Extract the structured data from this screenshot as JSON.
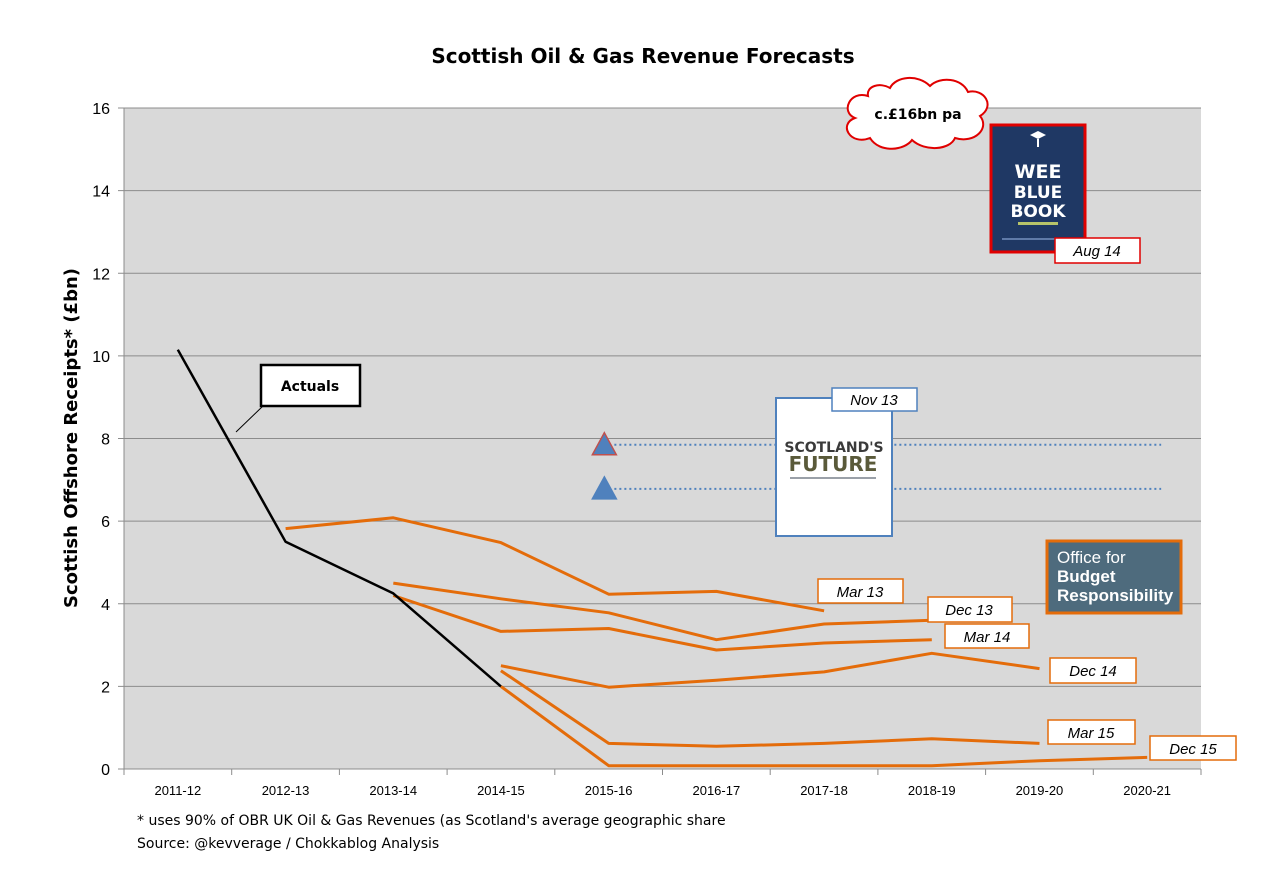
{
  "chart_data": {
    "type": "line",
    "title": "Scottish Oil & Gas Revenue Forecasts",
    "ylabel": "Scottish Offshore Receipts* (£bn)",
    "xlabel": "",
    "ylim": [
      0,
      16
    ],
    "yticks": [
      "0",
      "2",
      "4",
      "6",
      "8",
      "10",
      "12",
      "14",
      "16"
    ],
    "categories": [
      "2011-12",
      "2012-13",
      "2013-14",
      "2014-15",
      "2015-16",
      "2016-17",
      "2017-18",
      "2018-19",
      "2019-20",
      "2020-21"
    ],
    "grid": true,
    "plot_background": "#d9d9d9",
    "series": [
      {
        "name": "Actuals",
        "color": "#000000",
        "values": [
          10.15,
          5.5,
          4.25,
          2.0,
          null,
          null,
          null,
          null,
          null,
          null
        ]
      },
      {
        "name": "Mar 13",
        "color": "#e46c0a",
        "values": [
          null,
          5.82,
          6.08,
          5.48,
          4.23,
          4.3,
          3.83,
          null,
          null,
          null
        ]
      },
      {
        "name": "Dec 13",
        "color": "#e46c0a",
        "values": [
          null,
          null,
          4.5,
          4.12,
          3.78,
          3.13,
          3.51,
          3.6,
          null,
          null
        ]
      },
      {
        "name": "Mar 14",
        "color": "#e46c0a",
        "values": [
          null,
          null,
          4.2,
          3.33,
          3.4,
          2.88,
          3.05,
          3.13,
          null,
          null
        ]
      },
      {
        "name": "Dec 14",
        "color": "#e46c0a",
        "values": [
          null,
          null,
          null,
          2.5,
          1.98,
          2.15,
          2.35,
          2.8,
          2.43,
          null
        ]
      },
      {
        "name": "Mar 15",
        "color": "#e46c0a",
        "values": [
          null,
          null,
          null,
          2.38,
          0.62,
          0.55,
          0.62,
          0.73,
          0.62,
          null
        ]
      },
      {
        "name": "Dec 15",
        "color": "#e46c0a",
        "values": [
          null,
          null,
          null,
          2.0,
          0.08,
          0.08,
          0.08,
          0.08,
          0.2,
          0.28
        ]
      }
    ],
    "scotlands_future_estimates": {
      "values": [
        7.85,
        6.78
      ],
      "colors": [
        "#4f81bd",
        "#4f81bd"
      ],
      "marker": "triangle",
      "line_style": "dotted"
    },
    "callouts": {
      "actuals": "Actuals",
      "cloud": "c.£16bn pa",
      "aug14": "Aug 14",
      "nov13": "Nov 13",
      "mar13": "Mar 13",
      "dec13": "Dec 13",
      "mar14": "Mar 14",
      "dec14": "Dec 14",
      "mar15": "Mar 15",
      "dec15": "Dec 15"
    }
  },
  "images": {
    "wee_blue_book": {
      "lines": [
        "WEE",
        "BLUE",
        "BOOK"
      ],
      "bg": "#1f3864",
      "border": "#e00000"
    },
    "scotlands_future": {
      "line1": "SCOTLAND'S",
      "line2": "FUTURE"
    },
    "obr": {
      "line1": "Office for",
      "line2": "Budget",
      "line3": "Responsibility",
      "bg": "#4e6b7d",
      "border": "#e46c0a"
    }
  },
  "footnotes": {
    "note": "* uses 90% of OBR UK Oil & Gas Revenues (as Scotland's average geographic share",
    "source": "Source: @kevverage / Chokkablog Analysis"
  }
}
